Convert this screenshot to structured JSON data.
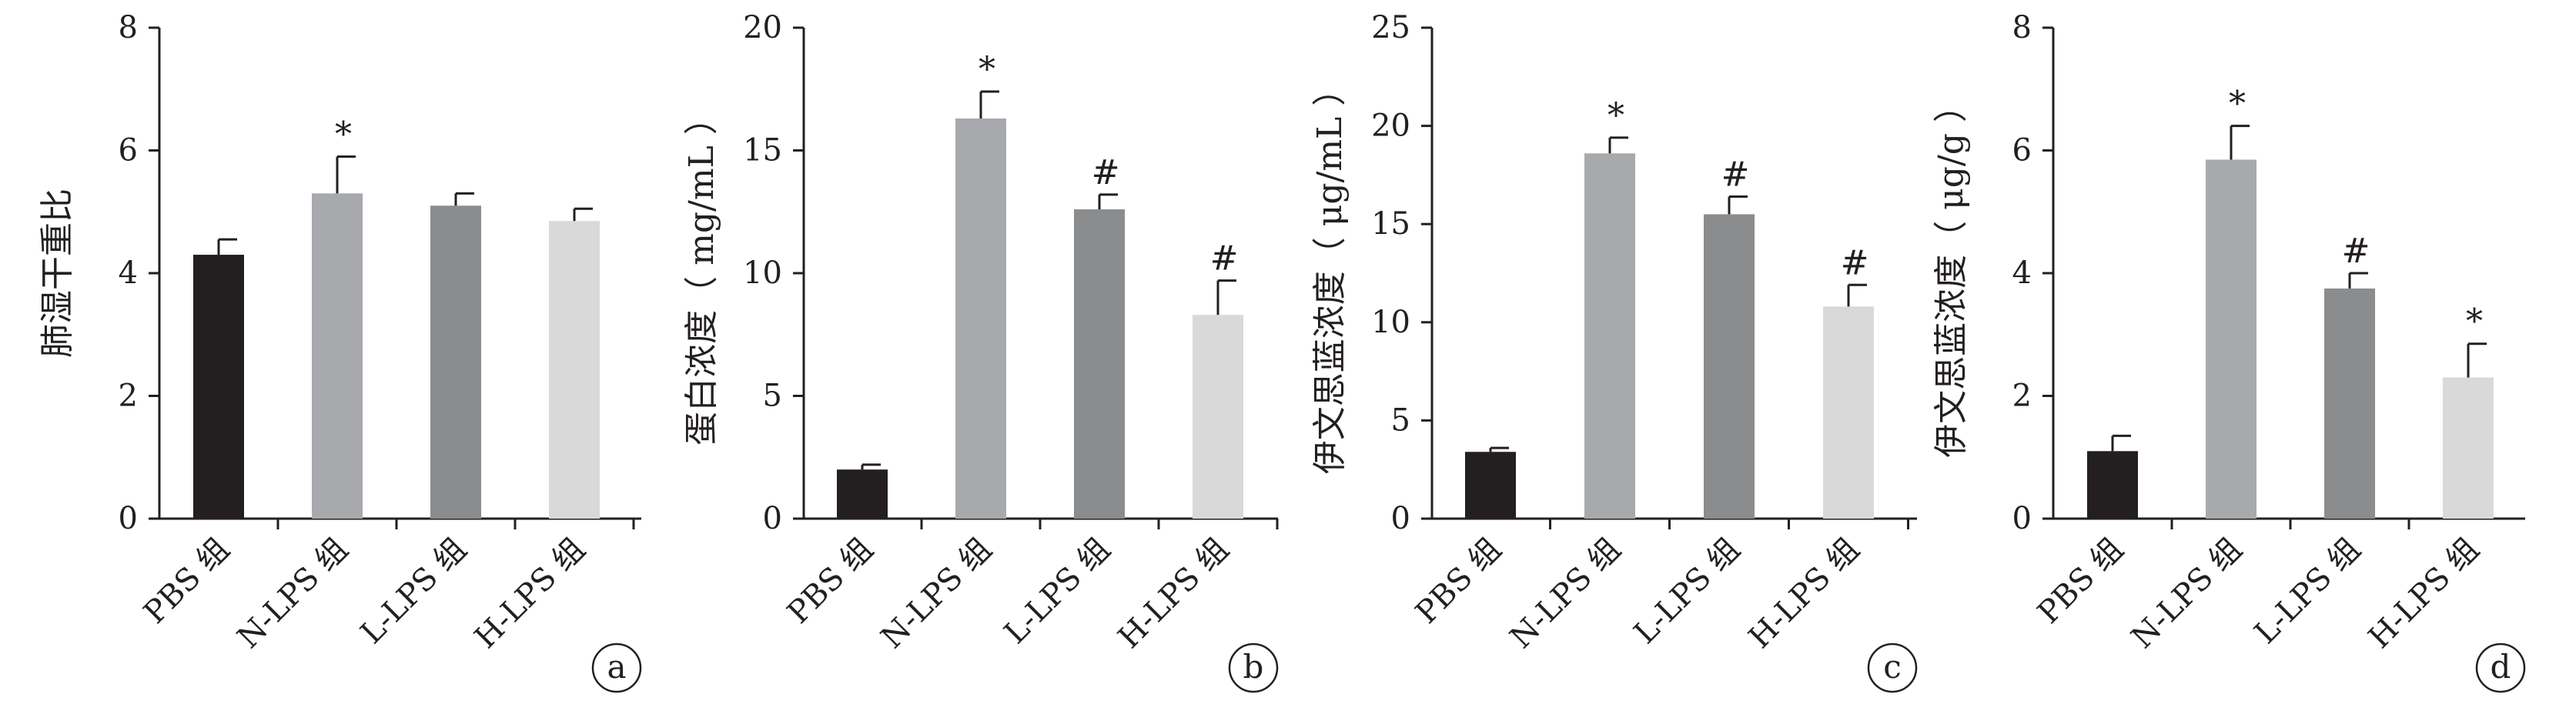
{
  "chart_data": [
    {
      "type": "bar",
      "panel_label": "a",
      "ylabel": "肺湿干重比",
      "ylim": [
        0,
        8
      ],
      "yticks": [
        "0",
        "2",
        "4",
        "6",
        "8"
      ],
      "categories": [
        "PBS 组",
        "N-LPS 组",
        "L-LPS 组",
        "H-LPS 组"
      ],
      "values": [
        4.3,
        5.3,
        5.1,
        4.85
      ],
      "errors": [
        0.25,
        0.6,
        0.2,
        0.2
      ],
      "annotations": [
        "",
        "*",
        "",
        ""
      ],
      "bar_colors": [
        "#231f20",
        "#a7a9ac",
        "#8a8c8e",
        "#d9d9d9"
      ],
      "grid": false
    },
    {
      "type": "bar",
      "panel_label": "b",
      "ylabel": "蛋白浓度（ mg/mL ）",
      "ylim": [
        0,
        20
      ],
      "yticks": [
        "0",
        "5",
        "10",
        "15",
        "20"
      ],
      "categories": [
        "PBS 组",
        "N-LPS 组",
        "L-LPS 组",
        "H-LPS 组"
      ],
      "values": [
        2.0,
        16.3,
        12.6,
        8.3
      ],
      "errors": [
        0.2,
        1.1,
        0.6,
        1.4
      ],
      "annotations": [
        "",
        "*",
        "#",
        "#"
      ],
      "bar_colors": [
        "#231f20",
        "#a7a9ac",
        "#8a8c8e",
        "#d9d9d9"
      ],
      "grid": false
    },
    {
      "type": "bar",
      "panel_label": "c",
      "ylabel": "伊文思蓝浓度（ μg/mL ）",
      "ylim": [
        0,
        25
      ],
      "yticks": [
        "0",
        "5",
        "10",
        "15",
        "20",
        "25"
      ],
      "categories": [
        "PBS 组",
        "N-LPS 组",
        "L-LPS 组",
        "H-LPS 组"
      ],
      "values": [
        3.4,
        18.6,
        15.5,
        10.8
      ],
      "errors": [
        0.2,
        0.8,
        0.9,
        1.1
      ],
      "annotations": [
        "",
        "*",
        "#",
        "#"
      ],
      "bar_colors": [
        "#231f20",
        "#a7a9ac",
        "#8a8c8e",
        "#d9d9d9"
      ],
      "grid": false
    },
    {
      "type": "bar",
      "panel_label": "d",
      "ylabel": "伊文思蓝浓度（ μg/g ）",
      "ylim": [
        0,
        8
      ],
      "yticks": [
        "0",
        "2",
        "4",
        "6",
        "8"
      ],
      "categories": [
        "PBS 组",
        "N-LPS 组",
        "L-LPS 组",
        "H-LPS 组"
      ],
      "values": [
        1.1,
        5.85,
        3.75,
        2.3
      ],
      "errors": [
        0.25,
        0.55,
        0.25,
        0.55
      ],
      "annotations": [
        "",
        "*",
        "#",
        "*"
      ],
      "bar_colors": [
        "#231f20",
        "#a7a9ac",
        "#8a8c8e",
        "#d9d9d9"
      ],
      "grid": false
    }
  ]
}
